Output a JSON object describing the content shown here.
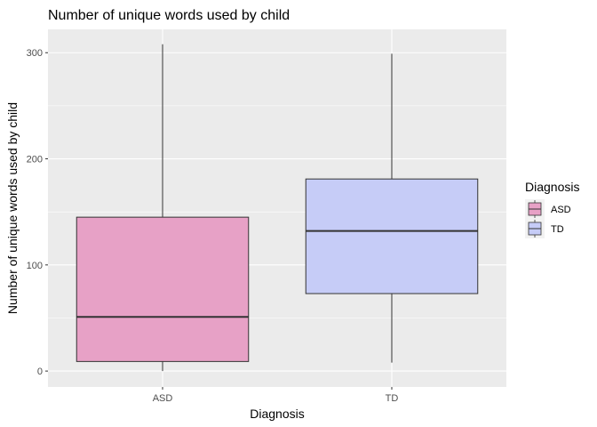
{
  "chart_data": {
    "type": "boxplot",
    "title": "Number of unique words used by child",
    "xlabel": "Diagnosis",
    "ylabel": "Number of unique words used by child",
    "categories": [
      "ASD",
      "TD"
    ],
    "boxes": [
      {
        "category": "ASD",
        "min": 0,
        "q1": 9,
        "median": 51,
        "q3": 145,
        "max": 308,
        "fill": "#E7A1C6"
      },
      {
        "category": "TD",
        "min": 8,
        "q1": 73,
        "median": 132,
        "q3": 181,
        "max": 299,
        "fill": "#C6CCF7"
      }
    ],
    "ylim": [
      -15,
      322
    ],
    "yticks": [
      0,
      100,
      200,
      300
    ],
    "grid": true,
    "legend": {
      "title": "Diagnosis",
      "position": "right",
      "items": [
        {
          "label": "ASD",
          "color": "#E7A1C6"
        },
        {
          "label": "TD",
          "color": "#C6CCF7"
        }
      ]
    },
    "colors": {
      "panel": "#EBEBEB",
      "grid": "#FFFFFF",
      "outline": "#333333"
    }
  }
}
